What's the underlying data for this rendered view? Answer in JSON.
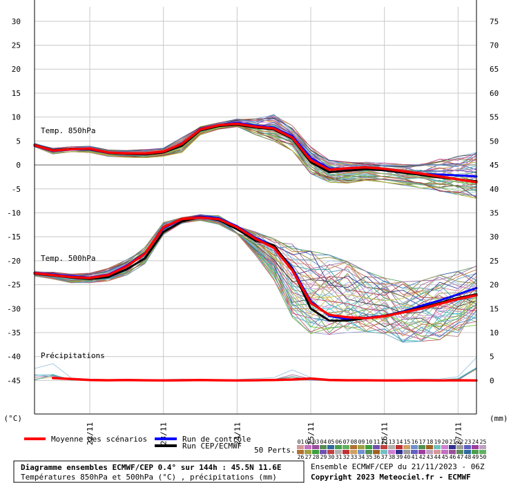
{
  "chart_data": {
    "type": "line",
    "left_axis_ticks": [
      30,
      25,
      20,
      15,
      10,
      5,
      0,
      -5,
      -10,
      -15,
      -20,
      -25,
      -30,
      -35,
      -40,
      -45
    ],
    "right_axis_ticks": [
      75,
      70,
      65,
      60,
      55,
      50,
      45,
      40,
      35,
      30,
      25,
      20,
      15,
      10,
      5,
      0
    ],
    "left_unit": "(°C)",
    "right_unit": "(mm)",
    "ylim": [
      -52,
      33
    ],
    "xlim": [
      0,
      144
    ],
    "x_ticks": [
      {
        "x": 18,
        "label": "22/11"
      },
      {
        "x": 42,
        "label": "23/11"
      },
      {
        "x": 66,
        "label": "24/11"
      },
      {
        "x": 90,
        "label": "25/11"
      },
      {
        "x": 114,
        "label": "26/11"
      },
      {
        "x": 138,
        "label": "27/11"
      }
    ],
    "panel_labels": {
      "t850": "Temp. 850hPa",
      "t500": "Temp. 500hPa",
      "precip": "Précipitations"
    },
    "series": {
      "t850_mean": {
        "x": [
          0,
          6,
          12,
          18,
          24,
          30,
          36,
          42,
          48,
          54,
          60,
          66,
          72,
          78,
          84,
          90,
          96,
          102,
          108,
          114,
          120,
          126,
          132,
          138,
          144
        ],
        "y": [
          4.1,
          3.0,
          3.3,
          3.4,
          2.6,
          2.4,
          2.4,
          2.8,
          4.4,
          7.4,
          8.3,
          8.6,
          8.0,
          7.6,
          5.7,
          1.0,
          -1.0,
          -0.7,
          -0.5,
          -0.8,
          -1.3,
          -1.8,
          -2.4,
          -3.0,
          -3.6
        ]
      },
      "t850_control": {
        "x": [
          0,
          6,
          12,
          18,
          24,
          30,
          36,
          42,
          48,
          54,
          60,
          66,
          72,
          78,
          84,
          90,
          96,
          102,
          108,
          114,
          120,
          126,
          132,
          138,
          144
        ],
        "y": [
          4.0,
          2.9,
          3.2,
          3.2,
          2.5,
          2.3,
          2.3,
          2.7,
          4.3,
          7.5,
          8.3,
          8.8,
          8.2,
          7.8,
          6.0,
          1.5,
          -0.8,
          -0.9,
          -0.6,
          -1.0,
          -1.5,
          -1.9,
          -2.0,
          -2.2,
          -2.4
        ]
      },
      "t850_deterministic": {
        "x": [
          0,
          6,
          12,
          18,
          24,
          30,
          36,
          42,
          48,
          54,
          60,
          66,
          72,
          78,
          84,
          90,
          96,
          102,
          108,
          114,
          120,
          126,
          132,
          138,
          144
        ],
        "y": [
          4.2,
          3.1,
          3.4,
          3.3,
          2.5,
          2.3,
          2.2,
          2.6,
          4.0,
          7.2,
          8.1,
          8.4,
          7.8,
          7.4,
          5.5,
          0.6,
          -1.5,
          -1.2,
          -0.9,
          -1.1,
          -1.6,
          -2.1,
          -2.6,
          -3.0,
          -3.4
        ]
      },
      "t500_mean": {
        "x": [
          0,
          6,
          12,
          18,
          24,
          30,
          36,
          42,
          48,
          54,
          60,
          66,
          72,
          78,
          84,
          90,
          96,
          102,
          108,
          114,
          120,
          126,
          132,
          138,
          144
        ],
        "y": [
          -22.6,
          -23.0,
          -23.4,
          -23.6,
          -23.0,
          -21.2,
          -18.5,
          -13.0,
          -11.3,
          -11.0,
          -11.3,
          -13.0,
          -15.4,
          -17.3,
          -22.0,
          -28.8,
          -31.3,
          -31.8,
          -32.0,
          -31.6,
          -30.8,
          -30.0,
          -29.0,
          -28.0,
          -27.2
        ]
      },
      "t500_control": {
        "x": [
          0,
          6,
          12,
          18,
          24,
          30,
          36,
          42,
          48,
          54,
          60,
          66,
          72,
          78,
          84,
          90,
          96,
          102,
          108,
          114,
          120,
          126,
          132,
          138,
          144
        ],
        "y": [
          -22.5,
          -22.9,
          -23.2,
          -23.5,
          -22.9,
          -21.0,
          -18.4,
          -13.2,
          -11.4,
          -10.8,
          -11.1,
          -12.8,
          -15.2,
          -17.0,
          -21.5,
          -28.5,
          -31.5,
          -32.2,
          -31.9,
          -31.5,
          -30.6,
          -29.4,
          -28.3,
          -27.0,
          -25.7
        ]
      },
      "t500_deterministic": {
        "x": [
          0,
          6,
          12,
          18,
          24,
          30,
          36,
          42,
          48,
          54,
          60,
          66,
          72,
          78,
          84,
          90,
          96,
          102,
          108,
          114,
          120,
          126,
          132,
          138,
          144
        ],
        "y": [
          -22.7,
          -23.1,
          -23.5,
          -23.8,
          -23.4,
          -21.8,
          -19.5,
          -14.0,
          -11.8,
          -10.9,
          -11.5,
          -13.4,
          -15.8,
          -16.8,
          -21.8,
          -30.0,
          -32.5,
          -32.5,
          -32.0,
          -31.5,
          -30.7,
          -29.8,
          -28.8,
          -27.8,
          -27.0
        ]
      },
      "precip_mean": {
        "x": [
          6,
          12,
          18,
          24,
          30,
          36,
          42,
          48,
          54,
          60,
          66,
          72,
          78,
          84,
          90,
          96,
          102,
          108,
          114,
          120,
          126,
          132,
          138,
          144
        ],
        "y_mm": [
          0.5,
          0.3,
          0.1,
          0.05,
          0.1,
          0.05,
          0.0,
          0.05,
          0.1,
          0.05,
          0.0,
          0.05,
          0.1,
          0.2,
          0.4,
          0.1,
          0.05,
          0.05,
          0.0,
          0.0,
          0.05,
          0.0,
          0.05,
          0.0
        ]
      }
    },
    "ensemble_ranges": {
      "x": [
        0,
        6,
        12,
        18,
        24,
        30,
        36,
        42,
        48,
        54,
        60,
        66,
        72,
        78,
        84,
        90,
        96,
        102,
        108,
        114,
        120,
        126,
        132,
        138,
        144
      ],
      "t850_min": [
        3.8,
        2.3,
        2.7,
        2.6,
        1.8,
        1.6,
        1.5,
        1.8,
        2.6,
        6.3,
        7.5,
        8.0,
        6.3,
        5.0,
        3.0,
        -1.8,
        -3.6,
        -3.8,
        -3.2,
        -3.6,
        -4.2,
        -4.8,
        -5.5,
        -6.2,
        -7.0
      ],
      "t850_max": [
        4.5,
        3.5,
        3.8,
        3.9,
        3.1,
        3.0,
        3.2,
        3.5,
        5.7,
        8.0,
        8.8,
        9.6,
        9.6,
        10.5,
        8.2,
        3.8,
        1.0,
        0.6,
        0.6,
        0.4,
        0.1,
        0.4,
        1.2,
        1.8,
        2.6
      ],
      "t500_min": [
        -23.2,
        -23.8,
        -24.6,
        -24.6,
        -24.2,
        -23.0,
        -20.6,
        -14.5,
        -12.2,
        -11.6,
        -12.4,
        -15.0,
        -18.8,
        -24.0,
        -31.8,
        -35.2,
        -35.4,
        -35.0,
        -34.8,
        -35.2,
        -37.0,
        -36.8,
        -36.5,
        -35.8,
        -34.0
      ],
      "t500_max": [
        -22.2,
        -22.4,
        -22.8,
        -22.6,
        -21.6,
        -19.8,
        -17.2,
        -12.0,
        -11.0,
        -10.4,
        -10.6,
        -12.2,
        -14.0,
        -15.4,
        -15.6,
        -18.0,
        -18.8,
        -20.2,
        -22.2,
        -23.6,
        -24.4,
        -24.2,
        -23.0,
        -22.2,
        -21.0
      ],
      "precip_max_mm": [
        2.5,
        3.5,
        0.5,
        0.3,
        0.2,
        0.1,
        0.1,
        0.2,
        0.3,
        0.2,
        0.1,
        0.2,
        0.4,
        0.6,
        2.2,
        0.6,
        0.3,
        0.2,
        0.1,
        0.2,
        0.2,
        0.3,
        0.3,
        0.8,
        4.8
      ]
    },
    "ensemble_colors": [
      "#9dc6e0",
      "#e08a8a",
      "#8ad08a",
      "#c9a0dc",
      "#d4b05a",
      "#6fa8b8",
      "#b87a7a",
      "#7fbf9f",
      "#a0a0e0",
      "#5aa05a",
      "#c06060",
      "#60a0c0",
      "#a070a0",
      "#8c8c40",
      "#3d3d9e",
      "#9e3d3d",
      "#3d9e9e",
      "#c0c040",
      "#e0a0e0",
      "#404040",
      "#40c0c0",
      "#c04080",
      "#80c040",
      "#4080c0",
      "#c08040"
    ]
  },
  "legend": {
    "mean_label": "Moyenne des scénarios",
    "control_label": "Run de contrôle",
    "deterministic_label": "Run CEP/ECMWF",
    "perts_label": "50 Perts.",
    "mean_color": "#ff0000",
    "control_color": "#0000ff",
    "deterministic_color": "#000000",
    "pert_numbers_top": [
      "01",
      "02",
      "03",
      "04",
      "05",
      "06",
      "07",
      "08",
      "09",
      "10",
      "11",
      "12",
      "13",
      "14",
      "15",
      "16",
      "17",
      "18",
      "19",
      "20",
      "21",
      "22",
      "23",
      "24",
      "25"
    ],
    "pert_numbers_bottom": [
      "26",
      "27",
      "28",
      "29",
      "30",
      "31",
      "32",
      "33",
      "34",
      "35",
      "36",
      "37",
      "38",
      "39",
      "40",
      "41",
      "42",
      "43",
      "44",
      "45",
      "46",
      "47",
      "48",
      "49",
      "50"
    ],
    "pert_swatch_colors": [
      "#d49898",
      "#c070c0",
      "#9b4f9b",
      "#5a8a5a",
      "#2d6a9e",
      "#4a9e4a",
      "#60b060",
      "#b07030",
      "#a0a040",
      "#3d9e3d",
      "#7050b0",
      "#c04040",
      "#b0b0b0",
      "#c03030",
      "#d0a060",
      "#7090d0",
      "#509050",
      "#a06020",
      "#70c0c0",
      "#d080d0",
      "#303090",
      "#9c9c9c",
      "#6060c0",
      "#9e3d9e",
      "#c0a0c0"
    ]
  },
  "footer": {
    "title": "Diagramme ensembles ECMWF/CEP 0.4° sur 144h : 45.5N 11.6E",
    "subtitle": "Températures 850hPa et 500hPa (°C) , précipitations (mm)",
    "run_info": "Ensemble ECMWF/CEP du 21/11/2023 - 06Z",
    "copyright": "Copyright 2023 Meteociel.fr - ECMWF"
  }
}
